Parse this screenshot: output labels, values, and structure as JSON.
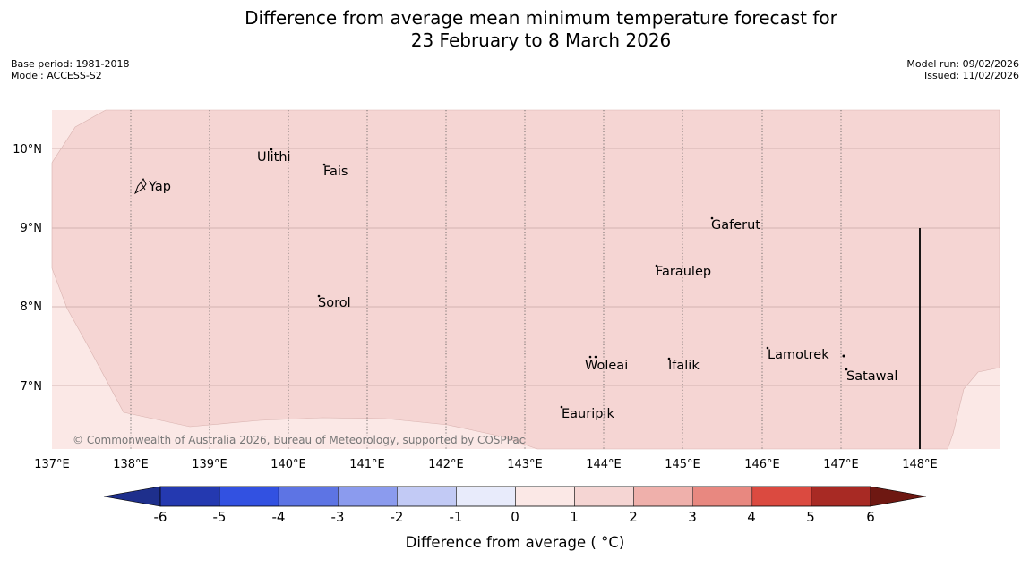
{
  "header": {
    "title_line1": "Difference from average mean minimum temperature forecast for",
    "title_line2": "23 February to 8 March 2026",
    "base_period": "Base period: 1981-2018",
    "model": "Model: ACCESS-S2",
    "model_run": "Model run: 09/02/2026",
    "issued": "Issued: 11/02/2026"
  },
  "map": {
    "latitude_labels": [
      "10°N",
      "9°N",
      "8°N",
      "7°N"
    ],
    "longitude_labels": [
      "137°E",
      "138°E",
      "139°E",
      "140°E",
      "141°E",
      "142°E",
      "143°E",
      "144°E",
      "145°E",
      "146°E",
      "147°E",
      "148°E"
    ],
    "places": [
      "Yap",
      "Ulithi",
      "Fais",
      "Gaferut",
      "Faraulep",
      "Sorol",
      "Woleai",
      "Ifalik",
      "Lamotrek",
      "Satawal",
      "Eauripik"
    ],
    "credit": "© Commonwealth of Australia 2026, Bureau of Meteorology, supported by COSPPac",
    "colors": {
      "main_fill": "#f5d5d3",
      "edge_fill": "#fbe8e6",
      "grid_line": "#c9a9a7"
    }
  },
  "colorbar": {
    "ticks": [
      "-6",
      "-5",
      "-4",
      "-3",
      "-2",
      "-1",
      "0",
      "1",
      "2",
      "3",
      "4",
      "5",
      "6"
    ],
    "colors": [
      "#1e2f8c",
      "#2439b0",
      "#3251e1",
      "#5d74e4",
      "#8b9bee",
      "#c2caf5",
      "#e8ebfb",
      "#fbe8e6",
      "#f5d5d3",
      "#efb0ab",
      "#e88880",
      "#db4a40",
      "#a82a24",
      "#6e1812"
    ],
    "label": "Difference from average ( °C)"
  }
}
